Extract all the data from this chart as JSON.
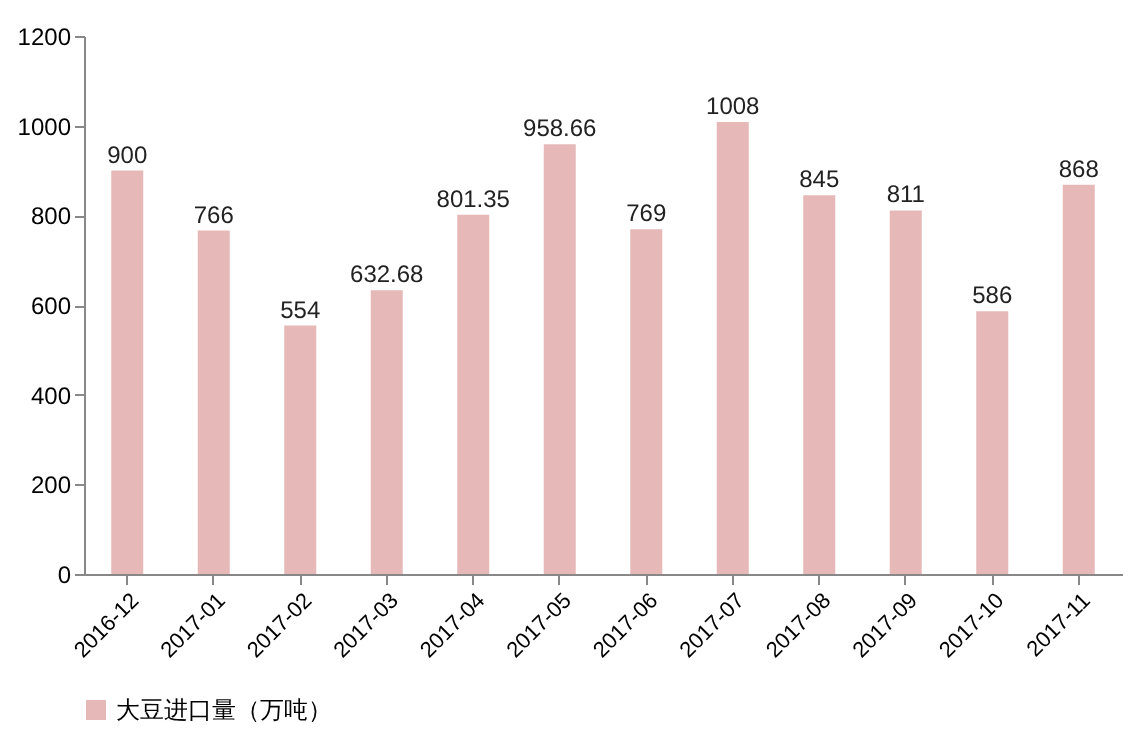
{
  "chart_data": {
    "type": "bar",
    "categories": [
      "2016-12",
      "2017-01",
      "2017-02",
      "2017-03",
      "2017-04",
      "2017-05",
      "2017-06",
      "2017-07",
      "2017-08",
      "2017-09",
      "2017-10",
      "2017-11"
    ],
    "series": [
      {
        "name": "大豆进口量（万吨）",
        "color": "#e6b9b8",
        "values": [
          900,
          766,
          554,
          632.68,
          801.35,
          958.66,
          769,
          1008,
          845,
          811,
          586,
          868
        ]
      }
    ],
    "ylim": [
      0,
      1200
    ],
    "yticks": [
      0,
      200,
      400,
      600,
      800,
      1000,
      1200
    ],
    "grid": false,
    "legend": "bottom left",
    "data_labels": true
  }
}
